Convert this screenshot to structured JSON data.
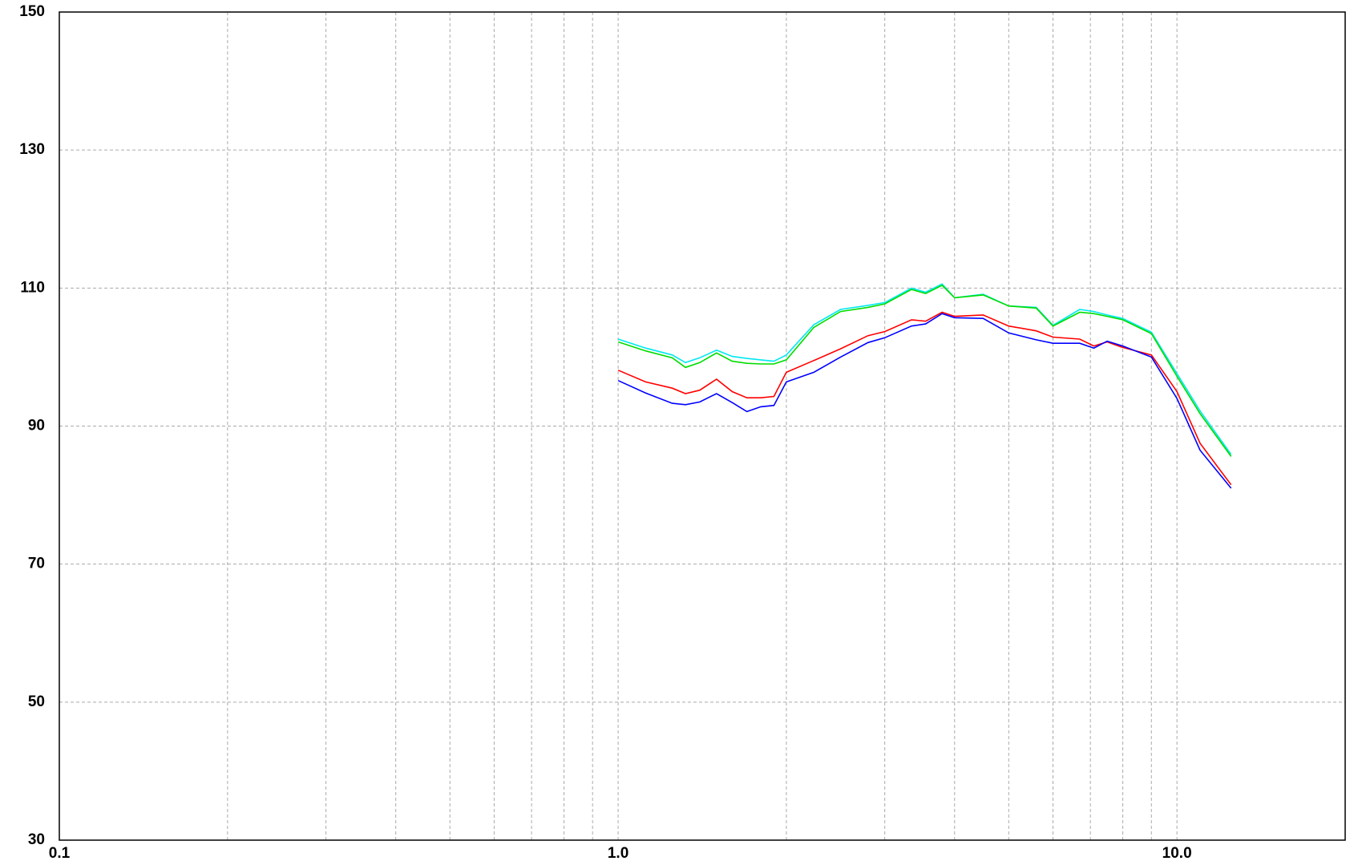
{
  "chart_data": {
    "type": "line",
    "xscale": "log",
    "grid": true,
    "x": [
      1.0,
      1.12,
      1.25,
      1.32,
      1.4,
      1.5,
      1.6,
      1.7,
      1.8,
      1.9,
      2.0,
      2.24,
      2.5,
      2.8,
      3.0,
      3.35,
      3.55,
      3.8,
      4.0,
      4.5,
      5.0,
      5.6,
      6.0,
      6.7,
      7.1,
      7.5,
      8.0,
      9.0,
      10.0,
      11.0,
      12.5
    ],
    "series": [
      {
        "color": "#00e8f0",
        "values": [
          102.6,
          101.3,
          100.3,
          99.2,
          99.9,
          101.0,
          100.1,
          99.8,
          99.6,
          99.4,
          100.3,
          104.7,
          106.9,
          107.5,
          107.9,
          110.0,
          109.4,
          110.6,
          108.6,
          109.1,
          107.4,
          107.2,
          104.6,
          106.9,
          106.6,
          106.1,
          105.6,
          103.6,
          97.6,
          92.2,
          85.9
        ]
      },
      {
        "color": "#00dd00",
        "values": [
          102.2,
          100.9,
          99.9,
          98.5,
          99.2,
          100.6,
          99.4,
          99.1,
          99.0,
          99.0,
          99.6,
          104.3,
          106.6,
          107.2,
          107.7,
          109.8,
          109.2,
          110.4,
          108.6,
          109.0,
          107.4,
          107.1,
          104.5,
          106.5,
          106.3,
          105.9,
          105.4,
          103.4,
          97.2,
          91.8,
          85.6
        ]
      },
      {
        "color": "#ff0000",
        "values": [
          98.1,
          96.4,
          95.5,
          94.7,
          95.2,
          96.8,
          95.0,
          94.1,
          94.1,
          94.3,
          97.8,
          99.5,
          101.2,
          103.1,
          103.7,
          105.4,
          105.2,
          106.5,
          105.9,
          106.1,
          104.5,
          103.8,
          102.9,
          102.6,
          101.6,
          102.2,
          101.4,
          100.3,
          95.0,
          87.5,
          81.5
        ]
      },
      {
        "color": "#0000ff",
        "values": [
          96.6,
          94.8,
          93.3,
          93.1,
          93.5,
          94.7,
          93.4,
          92.1,
          92.8,
          93.0,
          96.4,
          97.8,
          100.0,
          102.1,
          102.8,
          104.5,
          104.8,
          106.3,
          105.7,
          105.6,
          103.5,
          102.5,
          102.0,
          102.0,
          101.3,
          102.3,
          101.6,
          100.0,
          94.0,
          86.5,
          81.0
        ]
      }
    ],
    "xlim": [
      0.1,
      20
    ],
    "xticks": [
      0.1,
      {
        "value": 1,
        "label": "1.0"
      },
      {
        "value": 10,
        "label": "10.0"
      }
    ],
    "xgrid": [
      0.2,
      0.3,
      0.4,
      0.5,
      0.6,
      0.7,
      0.8,
      0.9,
      2,
      3,
      4,
      5,
      6,
      7,
      8,
      9
    ],
    "ylim": [
      30,
      150
    ],
    "yticks": [
      30,
      50,
      70,
      90,
      110,
      130,
      150
    ]
  }
}
